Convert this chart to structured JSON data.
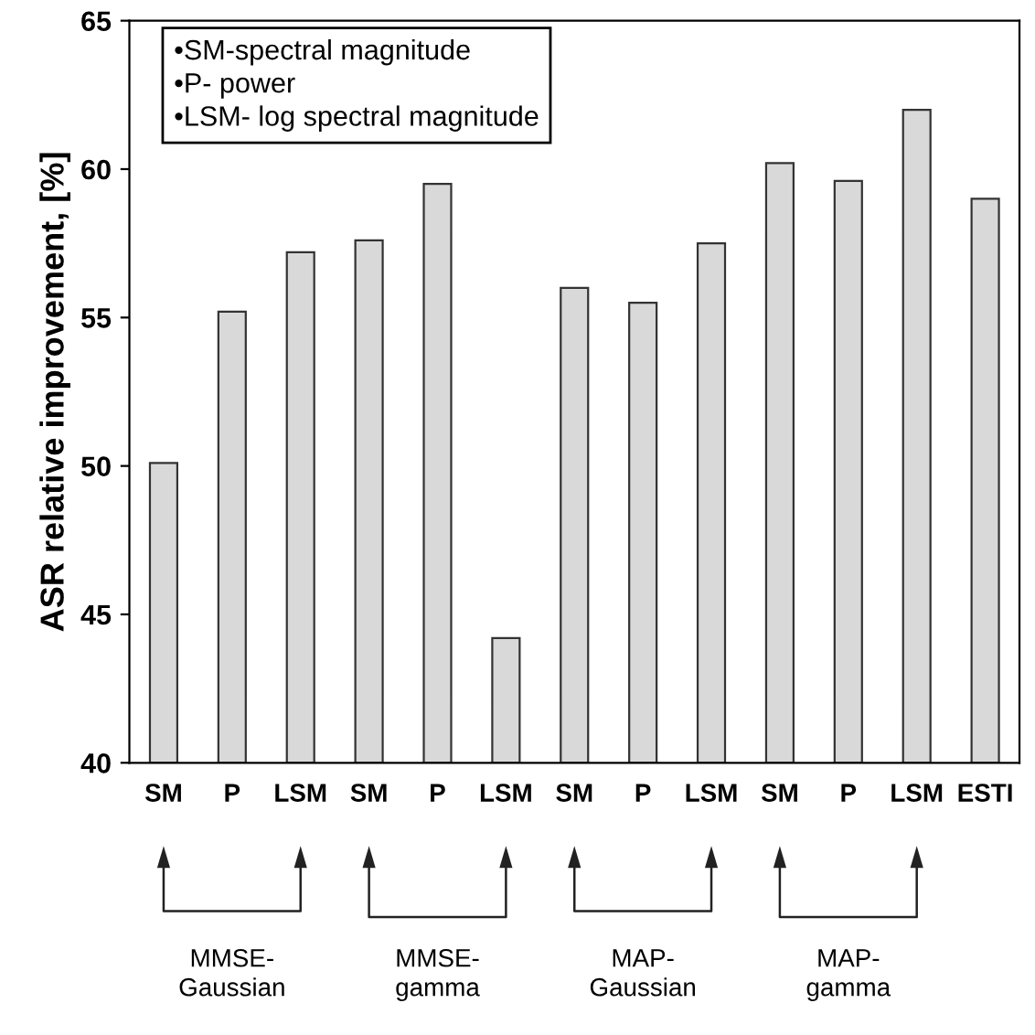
{
  "chart_data": {
    "type": "bar",
    "ylabel": "ASR relative improvement, [%]",
    "categories": [
      "SM",
      "P",
      "LSM",
      "SM",
      "P",
      "LSM",
      "SM",
      "P",
      "LSM",
      "SM",
      "P",
      "LSM",
      "ESTI"
    ],
    "values": [
      50.1,
      55.2,
      57.2,
      57.6,
      59.5,
      44.2,
      56.0,
      55.5,
      57.5,
      60.2,
      59.6,
      62.0,
      59.0
    ],
    "color": "#d9d9d9",
    "ylim": [
      40,
      65
    ],
    "yticks": [
      40,
      45,
      50,
      55,
      60,
      65
    ],
    "grid": false,
    "annotations": [
      "•SM-spectral magnitude",
      "•P- power",
      "•LSM- log spectral magnitude",
      "MMSE-\nGaussian",
      "MMSE-\ngamma",
      "MAP-\nGaussian",
      "MAP-\ngamma"
    ]
  }
}
